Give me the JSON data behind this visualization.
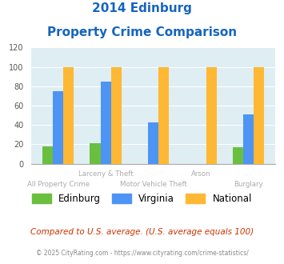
{
  "title_line1": "2014 Edinburg",
  "title_line2": "Property Crime Comparison",
  "categories": [
    "All Property Crime",
    "Larceny & Theft",
    "Motor Vehicle Theft",
    "Arson",
    "Burglary"
  ],
  "x_labels_row1": [
    "",
    "Larceny & Theft",
    "",
    "Arson",
    ""
  ],
  "x_labels_row2": [
    "All Property Crime",
    "",
    "Motor Vehicle Theft",
    "",
    "Burglary"
  ],
  "edinburg": [
    18,
    21,
    0,
    0,
    17
  ],
  "virginia": [
    75,
    85,
    43,
    0,
    51
  ],
  "national": [
    100,
    100,
    100,
    100,
    100
  ],
  "edinburg_color": "#6abf3f",
  "virginia_color": "#4d94f5",
  "national_color": "#ffb833",
  "bg_color": "#deeef3",
  "title_color": "#1565c0",
  "ylim": [
    0,
    120
  ],
  "yticks": [
    0,
    20,
    40,
    60,
    80,
    100,
    120
  ],
  "legend_labels": [
    "Edinburg",
    "Virginia",
    "National"
  ],
  "footnote1": "Compared to U.S. average. (U.S. average equals 100)",
  "footnote2": "© 2025 CityRating.com - https://www.cityrating.com/crime-statistics/",
  "footnote1_color": "#cc3300",
  "footnote2_color": "#888888",
  "bar_width": 0.22
}
